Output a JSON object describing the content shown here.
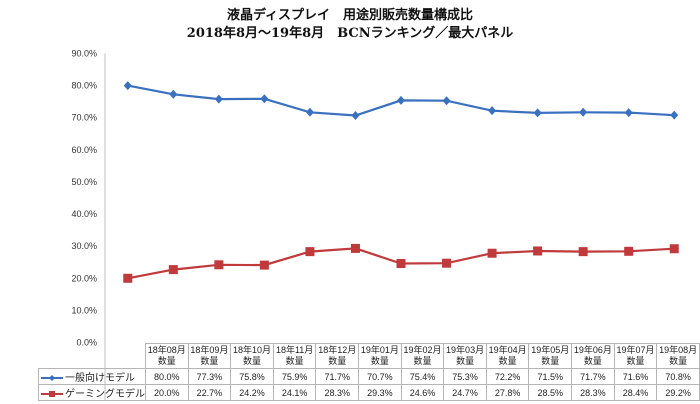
{
  "title": {
    "line1": "液晶ディスプレイ　用途別販売数量構成比",
    "line2": "2018年8月〜19年8月　BCNランキング／最大パネル"
  },
  "chart_data": {
    "type": "line",
    "title": "液晶ディスプレイ　用途別販売数量構成比 2018年8月〜19年8月　BCNランキング／最大パネル",
    "xlabel": "",
    "ylabel": "",
    "ylim": [
      0,
      90
    ],
    "yticks": [
      "0.0%",
      "10.0%",
      "20.0%",
      "30.0%",
      "40.0%",
      "50.0%",
      "60.0%",
      "70.0%",
      "80.0%",
      "90.0%"
    ],
    "ytick_values": [
      0,
      10,
      20,
      30,
      40,
      50,
      60,
      70,
      80,
      90
    ],
    "grid": false,
    "legend": "data-table",
    "categories": [
      {
        "month": "18年08月",
        "sub": "数量"
      },
      {
        "month": "18年09月",
        "sub": "数量"
      },
      {
        "month": "18年10月",
        "sub": "数量"
      },
      {
        "month": "18年11月",
        "sub": "数量"
      },
      {
        "month": "18年12月",
        "sub": "数量"
      },
      {
        "month": "19年01月",
        "sub": "数量"
      },
      {
        "month": "19年02月",
        "sub": "数量"
      },
      {
        "month": "19年03月",
        "sub": "数量"
      },
      {
        "month": "19年04月",
        "sub": "数量"
      },
      {
        "month": "19年05月",
        "sub": "数量"
      },
      {
        "month": "19年06月",
        "sub": "数量"
      },
      {
        "month": "19年07月",
        "sub": "数量"
      },
      {
        "month": "19年08月",
        "sub": "数量"
      }
    ],
    "series": [
      {
        "name": "一般向けモデル",
        "color": "#3a70c0",
        "marker": "diamond",
        "values": [
          80.0,
          77.3,
          75.8,
          75.9,
          71.7,
          70.7,
          75.4,
          75.3,
          72.2,
          71.5,
          71.7,
          71.6,
          70.8
        ],
        "labels": [
          "80.0%",
          "77.3%",
          "75.8%",
          "75.9%",
          "71.7%",
          "70.7%",
          "75.4%",
          "75.3%",
          "72.2%",
          "71.5%",
          "71.7%",
          "71.6%",
          "70.8%"
        ]
      },
      {
        "name": "ゲーミングモデル",
        "color": "#c0393b",
        "marker": "square",
        "values": [
          20.0,
          22.7,
          24.2,
          24.1,
          28.3,
          29.3,
          24.6,
          24.7,
          27.8,
          28.5,
          28.3,
          28.4,
          29.2
        ],
        "labels": [
          "20.0%",
          "22.7%",
          "24.2%",
          "24.1%",
          "28.3%",
          "29.3%",
          "24.6%",
          "24.7%",
          "27.8%",
          "28.5%",
          "28.3%",
          "28.4%",
          "29.2%"
        ]
      }
    ]
  }
}
